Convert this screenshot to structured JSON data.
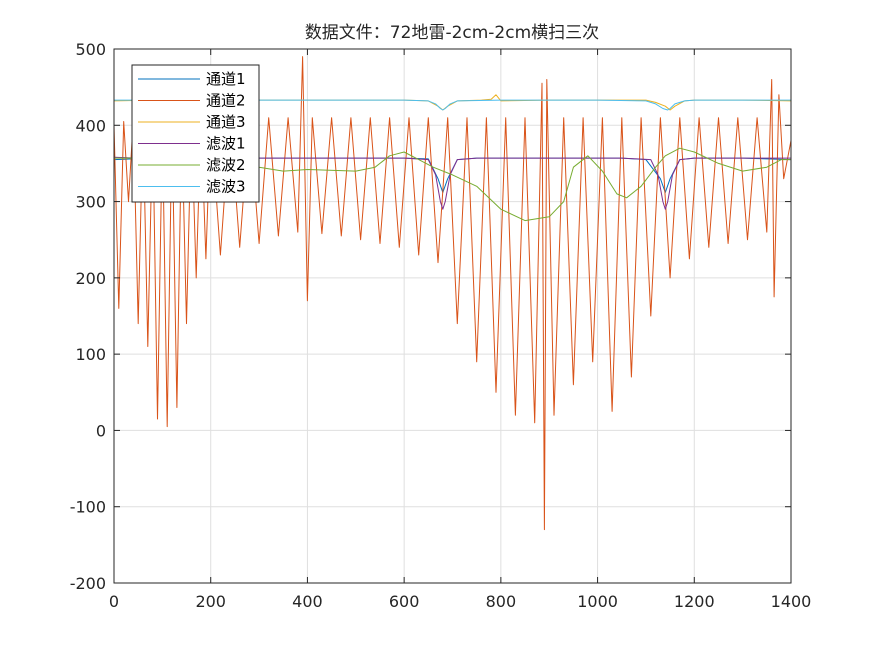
{
  "chart_data": {
    "type": "line",
    "title": "数据文件：72地雷-2cm-2cm横扫三次",
    "xlabel": "",
    "ylabel": "",
    "xlim": [
      0,
      1400
    ],
    "ylim": [
      -200,
      500
    ],
    "xticks": [
      0,
      200,
      400,
      600,
      800,
      1000,
      1200,
      1400
    ],
    "yticks": [
      -200,
      -100,
      0,
      100,
      200,
      300,
      400,
      500
    ],
    "grid": true,
    "legend_position": "top-left",
    "series": [
      {
        "name": "通道1",
        "color": "#0072BD",
        "x": [
          0,
          40,
          80,
          200,
          300,
          400,
          500,
          600,
          650,
          670,
          680,
          690,
          710,
          750,
          900,
          1050,
          1100,
          1130,
          1140,
          1150,
          1170,
          1200,
          1300,
          1400
        ],
        "values": [
          355,
          356,
          357,
          357,
          357,
          357,
          357,
          357,
          356,
          330,
          312,
          330,
          355,
          357,
          357,
          357,
          355,
          330,
          312,
          330,
          355,
          357,
          357,
          355
        ]
      },
      {
        "name": "通道2",
        "color": "#D95319",
        "x": [
          0,
          10,
          20,
          30,
          40,
          50,
          60,
          70,
          80,
          90,
          100,
          110,
          120,
          130,
          140,
          150,
          160,
          170,
          180,
          190,
          200,
          220,
          240,
          260,
          280,
          300,
          320,
          340,
          360,
          380,
          390,
          400,
          410,
          430,
          450,
          470,
          490,
          510,
          530,
          550,
          570,
          590,
          610,
          630,
          650,
          670,
          690,
          710,
          730,
          750,
          770,
          790,
          810,
          830,
          850,
          870,
          885,
          890,
          895,
          910,
          930,
          950,
          970,
          990,
          1010,
          1030,
          1050,
          1070,
          1090,
          1110,
          1130,
          1150,
          1170,
          1190,
          1210,
          1230,
          1250,
          1270,
          1290,
          1310,
          1330,
          1350,
          1360,
          1365,
          1375,
          1385,
          1400
        ],
        "values": [
          400,
          160,
          405,
          300,
          408,
          140,
          408,
          110,
          405,
          15,
          400,
          5,
          403,
          30,
          405,
          140,
          407,
          200,
          408,
          225,
          410,
          230,
          410,
          240,
          410,
          245,
          410,
          255,
          410,
          260,
          490,
          170,
          410,
          258,
          410,
          255,
          410,
          250,
          410,
          245,
          410,
          240,
          410,
          230,
          410,
          220,
          410,
          140,
          410,
          90,
          410,
          50,
          410,
          20,
          410,
          10,
          455,
          -130,
          460,
          20,
          410,
          60,
          410,
          90,
          410,
          25,
          410,
          70,
          410,
          150,
          410,
          200,
          410,
          225,
          410,
          240,
          410,
          245,
          410,
          250,
          410,
          260,
          460,
          175,
          440,
          330,
          380
        ]
      },
      {
        "name": "通道3",
        "color": "#EDB120",
        "x": [
          0,
          100,
          200,
          300,
          400,
          600,
          650,
          670,
          680,
          690,
          710,
          760,
          780,
          790,
          800,
          900,
          1000,
          1100,
          1120,
          1140,
          1150,
          1160,
          1180,
          1200,
          1300,
          1400
        ],
        "values": [
          432,
          433,
          433,
          433,
          433,
          433,
          432,
          425,
          420,
          425,
          432,
          433,
          434,
          440,
          432,
          433,
          433,
          433,
          430,
          425,
          420,
          425,
          432,
          433,
          433,
          432
        ]
      },
      {
        "name": "滤波1",
        "color": "#7E2F8E",
        "x": [
          0,
          50,
          100,
          200,
          300,
          400,
          500,
          600,
          650,
          665,
          675,
          680,
          685,
          695,
          710,
          750,
          900,
          1050,
          1110,
          1125,
          1135,
          1140,
          1145,
          1155,
          1170,
          1200,
          1300,
          1400
        ],
        "values": [
          358,
          357,
          357,
          357,
          357,
          357,
          357,
          357,
          355,
          335,
          300,
          290,
          300,
          335,
          355,
          357,
          357,
          357,
          355,
          335,
          300,
          290,
          300,
          335,
          355,
          357,
          357,
          357
        ]
      },
      {
        "name": "滤波2",
        "color": "#77AC30",
        "x": [
          0,
          100,
          200,
          280,
          300,
          350,
          400,
          500,
          540,
          570,
          600,
          630,
          660,
          700,
          750,
          800,
          850,
          900,
          930,
          950,
          980,
          1010,
          1040,
          1060,
          1090,
          1120,
          1140,
          1170,
          1200,
          1250,
          1300,
          1350,
          1380,
          1400
        ],
        "values": [
          357,
          357,
          357,
          355,
          345,
          340,
          342,
          340,
          345,
          360,
          365,
          355,
          345,
          335,
          320,
          290,
          275,
          280,
          300,
          345,
          360,
          340,
          310,
          305,
          320,
          345,
          360,
          370,
          365,
          350,
          340,
          345,
          355,
          355
        ]
      },
      {
        "name": "滤波3",
        "color": "#4DBEEE",
        "x": [
          0,
          100,
          200,
          300,
          400,
          500,
          600,
          650,
          665,
          675,
          680,
          685,
          695,
          710,
          800,
          900,
          1000,
          1100,
          1120,
          1135,
          1145,
          1150,
          1160,
          1180,
          1200,
          1300,
          1400
        ],
        "values": [
          433,
          433,
          433,
          433,
          433,
          433,
          433,
          432,
          428,
          422,
          420,
          422,
          428,
          432,
          433,
          433,
          433,
          432,
          428,
          422,
          420,
          422,
          428,
          432,
          433,
          433,
          433
        ]
      }
    ]
  }
}
